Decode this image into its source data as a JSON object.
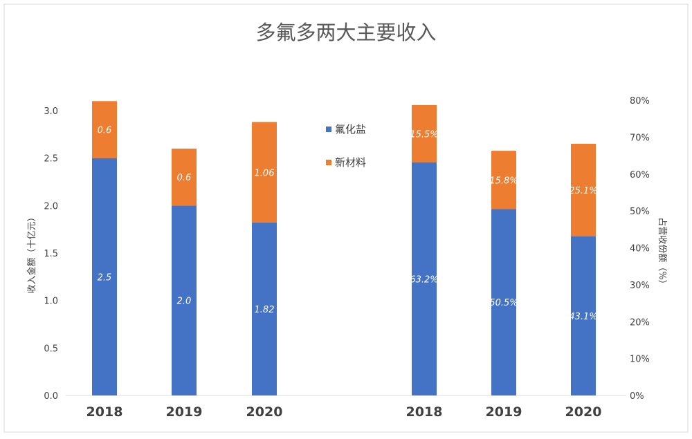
{
  "chart_data": {
    "type": "bar",
    "title": "多氟多两大主要收入",
    "ylabel_left": "收入金额（十亿元）",
    "ylabel_right": "占营收份额（%）",
    "left_yticks": [
      "0.0",
      "0.5",
      "1.0",
      "1.5",
      "2.0",
      "2.5",
      "3.0"
    ],
    "right_yticks": [
      "0%",
      "10%",
      "20%",
      "30%",
      "40%",
      "50%",
      "60%",
      "70%",
      "80%"
    ],
    "ylim_left": [
      0,
      3.0
    ],
    "ylim_right": [
      0,
      80
    ],
    "legend_position": "center",
    "colors": {
      "fluoride": "#4472C4",
      "new_material": "#ED7D31"
    },
    "groups": [
      {
        "axis": "left",
        "categories": [
          "2018",
          "2019",
          "2020"
        ],
        "series": [
          {
            "name": "氟化盐",
            "values": [
              2.5,
              2.0,
              1.82
            ],
            "labels": [
              "2.5",
              "2.0",
              "1.82"
            ]
          },
          {
            "name": "新材料",
            "values": [
              0.6,
              0.6,
              1.06
            ],
            "labels": [
              "0.6",
              "0.6",
              "1.06"
            ]
          }
        ]
      },
      {
        "axis": "right",
        "categories": [
          "2018",
          "2019",
          "2020"
        ],
        "series": [
          {
            "name": "氟化盐",
            "values": [
              63.2,
              50.5,
              43.1
            ],
            "labels": [
              "63.2%",
              "50.5%",
              "43.1%"
            ]
          },
          {
            "name": "新材料",
            "values": [
              15.5,
              15.8,
              25.1
            ],
            "labels": [
              "15.5%",
              "15.8%",
              "25.1%"
            ]
          }
        ]
      }
    ]
  }
}
